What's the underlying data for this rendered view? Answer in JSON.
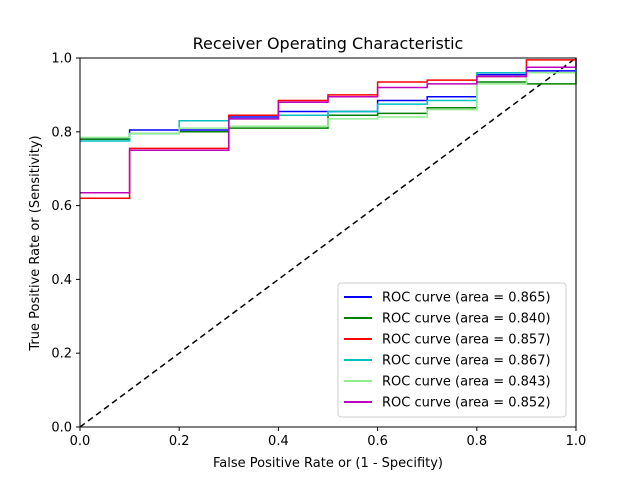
{
  "chart_data": {
    "type": "line",
    "title": "Receiver Operating Characteristic",
    "xlabel": "False Positive Rate or (1 - Specifity)",
    "ylabel": "True Positive Rate or (Sensitivity)",
    "xlim": [
      0,
      1
    ],
    "ylim": [
      0,
      1
    ],
    "xticks": [
      "0.0",
      "0.2",
      "0.4",
      "0.6",
      "0.8",
      "1.0"
    ],
    "yticks": [
      "0.0",
      "0.2",
      "0.4",
      "0.6",
      "0.8",
      "1.0"
    ],
    "grid": false,
    "legend_position": "lower-right",
    "diagonal": {
      "x": [
        0,
        1
      ],
      "y": [
        0,
        1
      ],
      "color": "#000000",
      "style": "dashed"
    },
    "series": [
      {
        "name": "ROC curve (area = 0.865)",
        "color": "#0000ff",
        "x": [
          0,
          0.1,
          0.1,
          0.2,
          0.2,
          0.3,
          0.3,
          0.4,
          0.4,
          0.5,
          0.5,
          0.6,
          0.6,
          0.7,
          0.7,
          0.8,
          0.8,
          0.9,
          0.9,
          1.0,
          1.0
        ],
        "y": [
          0.78,
          0.78,
          0.805,
          0.805,
          0.805,
          0.805,
          0.84,
          0.84,
          0.855,
          0.855,
          0.855,
          0.855,
          0.885,
          0.885,
          0.895,
          0.895,
          0.955,
          0.955,
          0.965,
          0.965,
          1.0
        ]
      },
      {
        "name": "ROC curve (area = 0.840)",
        "color": "#008000",
        "x": [
          0,
          0.1,
          0.1,
          0.2,
          0.2,
          0.3,
          0.3,
          0.5,
          0.5,
          0.6,
          0.6,
          0.7,
          0.7,
          0.8,
          0.8,
          0.9,
          0.9,
          1.0,
          1.0
        ],
        "y": [
          0.78,
          0.78,
          0.795,
          0.795,
          0.8,
          0.8,
          0.81,
          0.81,
          0.845,
          0.845,
          0.85,
          0.85,
          0.865,
          0.865,
          0.935,
          0.935,
          0.93,
          0.93,
          1.0
        ]
      },
      {
        "name": "ROC curve (area = 0.857)",
        "color": "#ff0000",
        "x": [
          0,
          0.1,
          0.1,
          0.3,
          0.3,
          0.4,
          0.4,
          0.5,
          0.5,
          0.6,
          0.6,
          0.7,
          0.7,
          0.8,
          0.8,
          0.9,
          0.9,
          1.0,
          1.0
        ],
        "y": [
          0.62,
          0.62,
          0.755,
          0.755,
          0.845,
          0.845,
          0.885,
          0.885,
          0.9,
          0.9,
          0.935,
          0.935,
          0.94,
          0.94,
          0.95,
          0.95,
          0.995,
          0.995,
          1.0
        ]
      },
      {
        "name": "ROC curve (area = 0.867)",
        "color": "#00bfbf",
        "x": [
          0,
          0.1,
          0.1,
          0.2,
          0.2,
          0.3,
          0.3,
          0.4,
          0.4,
          0.5,
          0.5,
          0.6,
          0.6,
          0.7,
          0.7,
          0.8,
          0.8,
          1.0,
          1.0
        ],
        "y": [
          0.775,
          0.775,
          0.795,
          0.795,
          0.83,
          0.83,
          0.835,
          0.835,
          0.845,
          0.845,
          0.855,
          0.855,
          0.875,
          0.875,
          0.885,
          0.885,
          0.96,
          0.96,
          1.0
        ]
      },
      {
        "name": "ROC curve (area = 0.843)",
        "color": "#90ee90",
        "x": [
          0,
          0.1,
          0.1,
          0.2,
          0.2,
          0.3,
          0.3,
          0.5,
          0.5,
          0.6,
          0.6,
          0.7,
          0.7,
          0.8,
          0.8,
          0.9,
          0.9,
          1.0,
          1.0
        ],
        "y": [
          0.785,
          0.785,
          0.795,
          0.795,
          0.81,
          0.81,
          0.815,
          0.815,
          0.835,
          0.835,
          0.84,
          0.84,
          0.86,
          0.86,
          0.93,
          0.93,
          0.96,
          0.96,
          1.0
        ]
      },
      {
        "name": "ROC curve (area = 0.852)",
        "color": "#bf00bf",
        "x": [
          0,
          0.1,
          0.1,
          0.3,
          0.3,
          0.4,
          0.4,
          0.5,
          0.5,
          0.6,
          0.6,
          0.7,
          0.7,
          0.8,
          0.8,
          0.9,
          0.9,
          1.0,
          1.0
        ],
        "y": [
          0.635,
          0.635,
          0.75,
          0.75,
          0.835,
          0.835,
          0.88,
          0.88,
          0.895,
          0.895,
          0.92,
          0.92,
          0.93,
          0.93,
          0.95,
          0.95,
          0.975,
          0.975,
          1.0
        ]
      }
    ]
  }
}
